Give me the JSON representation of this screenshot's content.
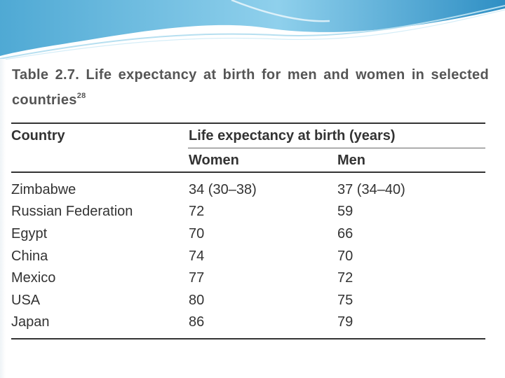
{
  "table": {
    "title": "Table 2.7. Life expectancy at birth for men and women in selected countries",
    "title_ref": "28",
    "header": {
      "country": "Country",
      "group": "Life expectancy at birth (years)",
      "women": "Women",
      "men": "Men"
    },
    "rows": [
      {
        "country": "Zimbabwe",
        "women": "34 (30–38)",
        "men": "37 (34–40)"
      },
      {
        "country": "Russian Federation",
        "women": "72",
        "men": "59"
      },
      {
        "country": "Egypt",
        "women": "70",
        "men": "66"
      },
      {
        "country": "China",
        "women": "74",
        "men": "70"
      },
      {
        "country": "Mexico",
        "women": "77",
        "men": "72"
      },
      {
        "country": "USA",
        "women": "80",
        "men": "75"
      },
      {
        "country": "Japan",
        "women": "86",
        "men": "79"
      }
    ]
  },
  "theme": {
    "accent": "#4fa9d4",
    "accent_light": "#bfe3f2",
    "title_color": "#555555",
    "text_color": "#333333"
  }
}
